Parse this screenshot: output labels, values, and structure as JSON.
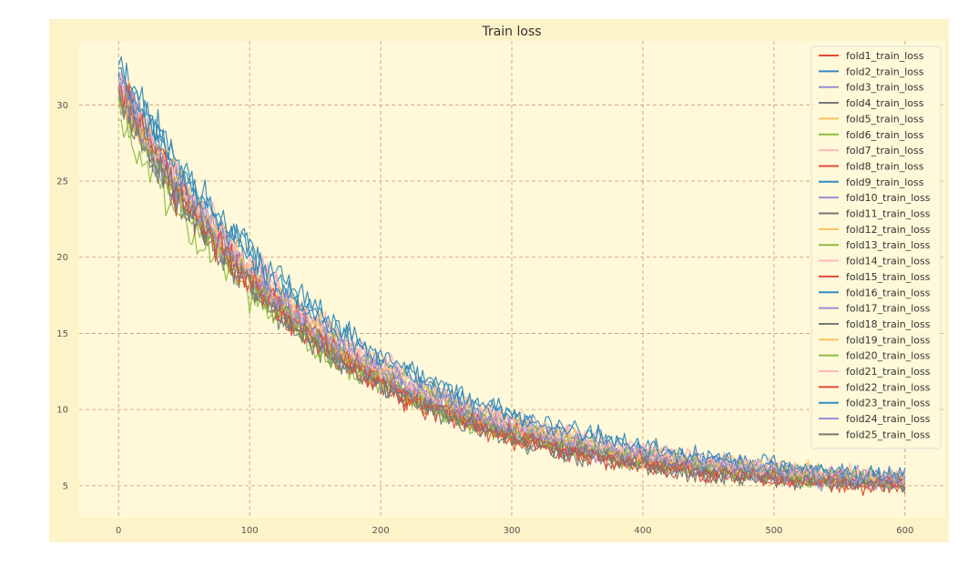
{
  "chart_data": {
    "type": "line",
    "title": "Train loss",
    "xlabel": "",
    "ylabel": "",
    "xlim": [
      -30,
      630
    ],
    "ylim": [
      2.9,
      34.2
    ],
    "xticks": [
      0,
      100,
      200,
      300,
      400,
      500,
      600
    ],
    "yticks": [
      5,
      10,
      15,
      20,
      25,
      30
    ],
    "grid": true,
    "legend_position": "top-right",
    "background": "#fff9d9",
    "frame_color": "#fdf3c8",
    "grid_color": "#c9966a",
    "x": {
      "start": 0,
      "end": 600,
      "step": 2
    },
    "curve_model": "a + b * exp(-x / tau) with epoch-to-epoch noise",
    "series": [
      {
        "name": "fold1_train_loss",
        "color": "#e24a33",
        "start": 31.5,
        "end": 5.0,
        "tau": 155
      },
      {
        "name": "fold2_train_loss",
        "color": "#348abd",
        "start": 32.6,
        "end": 5.6,
        "tau": 175
      },
      {
        "name": "fold3_train_loss",
        "color": "#988ed5",
        "start": 31.2,
        "end": 5.2,
        "tau": 160
      },
      {
        "name": "fold4_train_loss",
        "color": "#777777",
        "start": 31.0,
        "end": 5.0,
        "tau": 150
      },
      {
        "name": "fold5_train_loss",
        "color": "#fbc15e",
        "start": 30.8,
        "end": 5.4,
        "tau": 160
      },
      {
        "name": "fold6_train_loss",
        "color": "#8eba42",
        "start": 29.0,
        "end": 5.3,
        "tau": 158
      },
      {
        "name": "fold7_train_loss",
        "color": "#ffb5b8",
        "start": 31.3,
        "end": 5.5,
        "tau": 168
      },
      {
        "name": "fold8_train_loss",
        "color": "#e24a33",
        "start": 31.1,
        "end": 5.0,
        "tau": 152
      },
      {
        "name": "fold9_train_loss",
        "color": "#348abd",
        "start": 32.0,
        "end": 5.4,
        "tau": 165
      },
      {
        "name": "fold10_train_loss",
        "color": "#988ed5",
        "start": 31.0,
        "end": 5.3,
        "tau": 162
      },
      {
        "name": "fold11_train_loss",
        "color": "#777777",
        "start": 30.9,
        "end": 5.1,
        "tau": 154
      },
      {
        "name": "fold12_train_loss",
        "color": "#fbc15e",
        "start": 31.2,
        "end": 5.5,
        "tau": 166
      },
      {
        "name": "fold13_train_loss",
        "color": "#8eba42",
        "start": 30.5,
        "end": 5.2,
        "tau": 157
      },
      {
        "name": "fold14_train_loss",
        "color": "#ffb5b8",
        "start": 31.4,
        "end": 5.6,
        "tau": 170
      },
      {
        "name": "fold15_train_loss",
        "color": "#e24a33",
        "start": 31.2,
        "end": 5.1,
        "tau": 156
      },
      {
        "name": "fold16_train_loss",
        "color": "#348abd",
        "start": 32.2,
        "end": 5.5,
        "tau": 172
      },
      {
        "name": "fold17_train_loss",
        "color": "#988ed5",
        "start": 31.0,
        "end": 5.2,
        "tau": 161
      },
      {
        "name": "fold18_train_loss",
        "color": "#777777",
        "start": 31.1,
        "end": 5.1,
        "tau": 153
      },
      {
        "name": "fold19_train_loss",
        "color": "#fbc15e",
        "start": 31.0,
        "end": 5.4,
        "tau": 164
      },
      {
        "name": "fold20_train_loss",
        "color": "#8eba42",
        "start": 30.6,
        "end": 5.3,
        "tau": 159
      },
      {
        "name": "fold21_train_loss",
        "color": "#ffb5b8",
        "start": 31.3,
        "end": 5.5,
        "tau": 167
      },
      {
        "name": "fold22_train_loss",
        "color": "#e24a33",
        "start": 31.3,
        "end": 5.0,
        "tau": 155
      },
      {
        "name": "fold23_train_loss",
        "color": "#348abd",
        "start": 32.4,
        "end": 5.6,
        "tau": 174
      },
      {
        "name": "fold24_train_loss",
        "color": "#988ed5",
        "start": 31.1,
        "end": 5.3,
        "tau": 162
      },
      {
        "name": "fold25_train_loss",
        "color": "#777777",
        "start": 31.0,
        "end": 5.0,
        "tau": 150
      }
    ]
  }
}
